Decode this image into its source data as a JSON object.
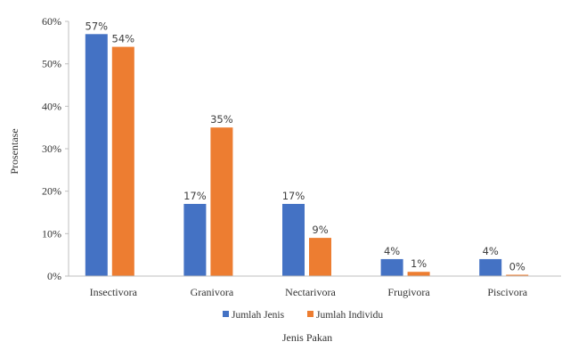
{
  "chart_data": {
    "type": "bar",
    "categories": [
      "Insectivora",
      "Granivora",
      "Nectarivora",
      "Frugivora",
      "Piscivora"
    ],
    "series": [
      {
        "name": "Jumlah Jenis",
        "color": "#4472C4",
        "values": [
          57,
          17,
          17,
          4,
          4
        ],
        "labels": [
          "57%",
          "17%",
          "17%",
          "4%",
          "4%"
        ]
      },
      {
        "name": "Jumlah Individu",
        "color": "#ED7D31",
        "values": [
          54,
          35,
          9,
          1,
          0
        ],
        "labels": [
          "54%",
          "35%",
          "9%",
          "1%",
          "0%"
        ]
      }
    ],
    "xlabel": "Jenis Pakan",
    "ylabel": "Prosentase",
    "ylim": [
      0,
      60
    ],
    "yticks": [
      "0%",
      "10%",
      "20%",
      "30%",
      "40%",
      "50%",
      "60%"
    ],
    "grid": false,
    "legend_position": "bottom"
  }
}
